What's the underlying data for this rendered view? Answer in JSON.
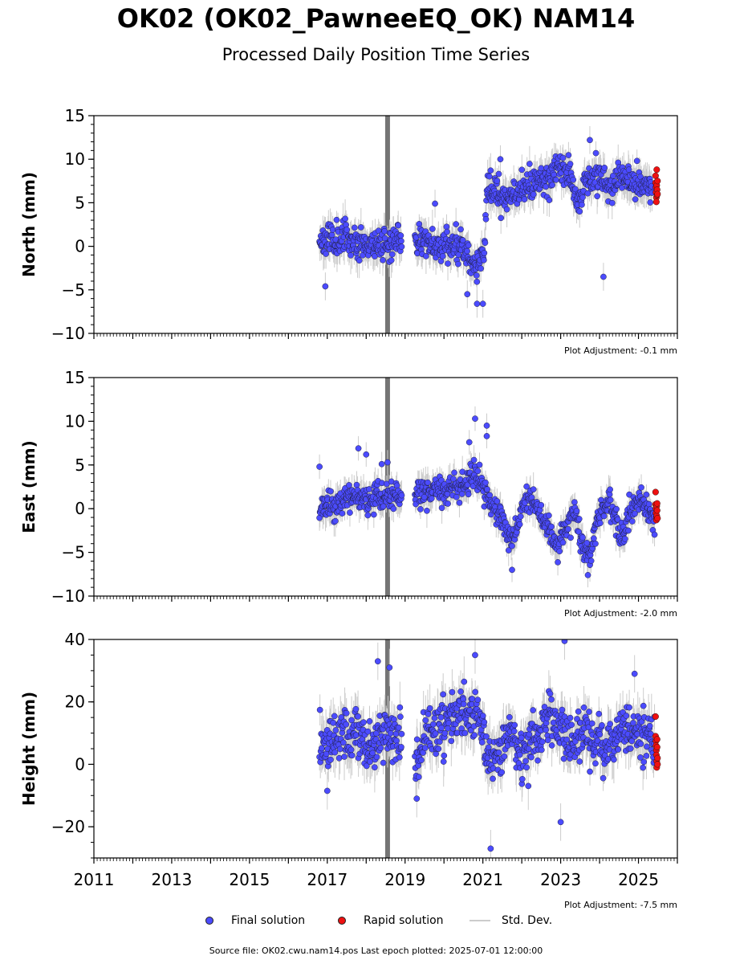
{
  "title": "OK02 (OK02_PawneeEQ_OK) NAM14",
  "subtitle": "Processed Daily Position Time Series",
  "colors": {
    "final": "#4b4bff",
    "rapid": "#ee1111",
    "stddev": "#cccccc",
    "event_line": "#666666"
  },
  "chart_data": [
    {
      "type": "scatter",
      "ylabel": "North (mm)",
      "ylim": [
        -10,
        15
      ],
      "yticks": [
        -10,
        -5,
        0,
        5,
        10,
        15
      ],
      "ytick_labels": [
        "−10",
        "−5",
        "0",
        "5",
        "10",
        "15"
      ],
      "xlim": [
        2011.0,
        2026.0
      ],
      "event_x": 2018.55,
      "plot_adjustment": "Plot Adjustment: -0.1 mm",
      "series": [
        {
          "name": "Final solution",
          "color": "#4b4bff",
          "seed": 11,
          "noise": 1.3,
          "err": 1.6,
          "trend": [
            [
              2016.8,
              0.8
            ],
            [
              2017.5,
              1.0
            ],
            [
              2018.0,
              0.2
            ],
            [
              2018.5,
              0.5
            ],
            [
              2018.9,
              0.5
            ],
            [
              2019.3,
              0.8
            ],
            [
              2019.8,
              0.2
            ],
            [
              2020.3,
              0.3
            ],
            [
              2020.6,
              -0.8
            ],
            [
              2020.85,
              -2.5
            ],
            [
              2021.05,
              0.0
            ],
            [
              2021.1,
              6.5
            ],
            [
              2021.6,
              5.8
            ],
            [
              2022.0,
              6.8
            ],
            [
              2022.6,
              7.5
            ],
            [
              2023.0,
              9.2
            ],
            [
              2023.2,
              8.5
            ],
            [
              2023.5,
              5.0
            ],
            [
              2023.6,
              7.0
            ],
            [
              2023.9,
              8.5
            ],
            [
              2024.3,
              7.0
            ],
            [
              2024.6,
              7.8
            ],
            [
              2025.0,
              7.2
            ],
            [
              2025.35,
              6.5
            ]
          ],
          "gaps": [
            [
              2018.92,
              2019.25
            ]
          ],
          "outliers": [
            [
              2016.95,
              -4.6
            ],
            [
              2021.0,
              -6.6
            ],
            [
              2020.85,
              -6.6
            ],
            [
              2021.45,
              10.0
            ],
            [
              2024.1,
              -3.5
            ],
            [
              2019.77,
              4.9
            ],
            [
              2023.75,
              12.2
            ],
            [
              2020.6,
              -5.5
            ]
          ]
        },
        {
          "name": "Rapid solution",
          "color": "#ee1111",
          "points": [
            [
              2025.44,
              8.1
            ],
            [
              2025.44,
              7.3
            ],
            [
              2025.45,
              6.8
            ],
            [
              2025.45,
              6.2
            ],
            [
              2025.46,
              5.6
            ],
            [
              2025.46,
              5.1
            ],
            [
              2025.47,
              7.0
            ],
            [
              2025.47,
              8.8
            ],
            [
              2025.48,
              6.5
            ],
            [
              2025.48,
              5.9
            ],
            [
              2025.49,
              7.5
            ],
            [
              2025.49,
              6.0
            ]
          ]
        }
      ]
    },
    {
      "type": "scatter",
      "ylabel": "East (mm)",
      "ylim": [
        -10,
        15
      ],
      "yticks": [
        -10,
        -5,
        0,
        5,
        10,
        15
      ],
      "ytick_labels": [
        "−10",
        "−5",
        "0",
        "5",
        "10",
        "15"
      ],
      "xlim": [
        2011.0,
        2026.0
      ],
      "event_x": 2018.55,
      "plot_adjustment": "Plot Adjustment: -2.0 mm",
      "series": [
        {
          "name": "Final solution",
          "color": "#4b4bff",
          "seed": 23,
          "noise": 1.1,
          "err": 1.4,
          "trend": [
            [
              2016.8,
              -0.2
            ],
            [
              2017.5,
              1.0
            ],
            [
              2018.3,
              1.3
            ],
            [
              2018.9,
              1.5
            ],
            [
              2019.3,
              2.0
            ],
            [
              2019.9,
              2.0
            ],
            [
              2020.5,
              2.5
            ],
            [
              2020.8,
              4.0
            ],
            [
              2021.0,
              2.5
            ],
            [
              2021.3,
              0.0
            ],
            [
              2021.6,
              -2.0
            ],
            [
              2021.75,
              -4.5
            ],
            [
              2022.0,
              0.0
            ],
            [
              2022.3,
              1.0
            ],
            [
              2022.6,
              -2.0
            ],
            [
              2022.9,
              -4.0
            ],
            [
              2023.2,
              -2.0
            ],
            [
              2023.35,
              0.0
            ],
            [
              2023.55,
              -4.0
            ],
            [
              2023.75,
              -5.5
            ],
            [
              2023.95,
              -1.0
            ],
            [
              2024.2,
              1.0
            ],
            [
              2024.45,
              -1.0
            ],
            [
              2024.6,
              -3.5
            ],
            [
              2024.75,
              -0.5
            ],
            [
              2025.0,
              1.0
            ],
            [
              2025.3,
              -0.5
            ],
            [
              2025.42,
              -1.5
            ]
          ],
          "gaps": [
            [
              2018.92,
              2019.25
            ]
          ],
          "outliers": [
            [
              2016.8,
              4.8
            ],
            [
              2017.8,
              6.9
            ],
            [
              2018.0,
              6.2
            ],
            [
              2018.4,
              5.1
            ],
            [
              2020.8,
              10.3
            ],
            [
              2021.1,
              9.5
            ],
            [
              2021.1,
              8.3
            ],
            [
              2020.65,
              7.6
            ],
            [
              2021.75,
              -7.0
            ],
            [
              2023.7,
              -7.6
            ],
            [
              2018.55,
              5.3
            ]
          ]
        },
        {
          "name": "Rapid solution",
          "color": "#ee1111",
          "points": [
            [
              2025.44,
              1.9
            ],
            [
              2025.44,
              0.5
            ],
            [
              2025.45,
              0.0
            ],
            [
              2025.45,
              -0.5
            ],
            [
              2025.46,
              -1.0
            ],
            [
              2025.46,
              -1.3
            ],
            [
              2025.47,
              0.3
            ],
            [
              2025.47,
              -0.8
            ],
            [
              2025.48,
              0.6
            ],
            [
              2025.48,
              -0.2
            ],
            [
              2025.49,
              -1.1
            ]
          ]
        }
      ]
    },
    {
      "type": "scatter",
      "ylabel": "Height (mm)",
      "ylim": [
        -30,
        40
      ],
      "yticks": [
        -20,
        0,
        20,
        40
      ],
      "ytick_labels": [
        "−20",
        "0",
        "20",
        "40"
      ],
      "xlim": [
        2011.0,
        2026.0
      ],
      "xticks": [
        2011,
        2013,
        2015,
        2017,
        2019,
        2021,
        2023,
        2025
      ],
      "xtick_labels": [
        "2011",
        "2013",
        "2015",
        "2017",
        "2019",
        "2021",
        "2023",
        "2025"
      ],
      "event_x": 2018.55,
      "plot_adjustment": "Plot Adjustment: -7.5 mm",
      "series": [
        {
          "name": "Final solution",
          "color": "#4b4bff",
          "seed": 37,
          "noise": 6.0,
          "err": 6.0,
          "trend": [
            [
              2016.8,
              7.0
            ],
            [
              2017.3,
              10.0
            ],
            [
              2017.8,
              9.0
            ],
            [
              2018.1,
              5.0
            ],
            [
              2018.5,
              10.0
            ],
            [
              2018.9,
              8.0
            ],
            [
              2019.2,
              -3.0
            ],
            [
              2019.6,
              10.0
            ],
            [
              2020.0,
              14.0
            ],
            [
              2020.5,
              17.0
            ],
            [
              2020.9,
              15.0
            ],
            [
              2021.2,
              2.0
            ],
            [
              2021.5,
              5.0
            ],
            [
              2021.8,
              10.0
            ],
            [
              2022.0,
              2.0
            ],
            [
              2022.4,
              10.0
            ],
            [
              2022.7,
              17.0
            ],
            [
              2023.0,
              12.0
            ],
            [
              2023.3,
              6.0
            ],
            [
              2023.6,
              12.0
            ],
            [
              2023.9,
              8.0
            ],
            [
              2024.2,
              5.0
            ],
            [
              2024.6,
              12.0
            ],
            [
              2025.0,
              10.0
            ],
            [
              2025.42,
              8.0
            ]
          ],
          "gaps": [
            [
              2018.92,
              2019.25
            ]
          ],
          "outliers": [
            [
              2018.3,
              33.0
            ],
            [
              2018.6,
              31.0
            ],
            [
              2021.2,
              -27.0
            ],
            [
              2023.0,
              -18.5
            ],
            [
              2023.1,
              39.5
            ],
            [
              2020.8,
              35.0
            ],
            [
              2017.0,
              -8.5
            ],
            [
              2019.3,
              -11.0
            ],
            [
              2024.9,
              29.0
            ]
          ]
        },
        {
          "name": "Rapid solution",
          "color": "#ee1111",
          "points": [
            [
              2025.44,
              15.3
            ],
            [
              2025.44,
              9.0
            ],
            [
              2025.45,
              7.5
            ],
            [
              2025.45,
              6.0
            ],
            [
              2025.46,
              4.5
            ],
            [
              2025.46,
              3.0
            ],
            [
              2025.47,
              1.0
            ],
            [
              2025.47,
              -1.0
            ],
            [
              2025.48,
              8.0
            ],
            [
              2025.48,
              5.5
            ],
            [
              2025.49,
              2.0
            ],
            [
              2025.49,
              0.0
            ]
          ]
        }
      ]
    }
  ],
  "legend": {
    "final": "Final solution",
    "rapid": "Rapid solution",
    "stddev": "Std. Dev."
  },
  "source": "Source file: OK02.cwu.nam14.pos  Last epoch plotted: 2025-07-01 12:00:00"
}
